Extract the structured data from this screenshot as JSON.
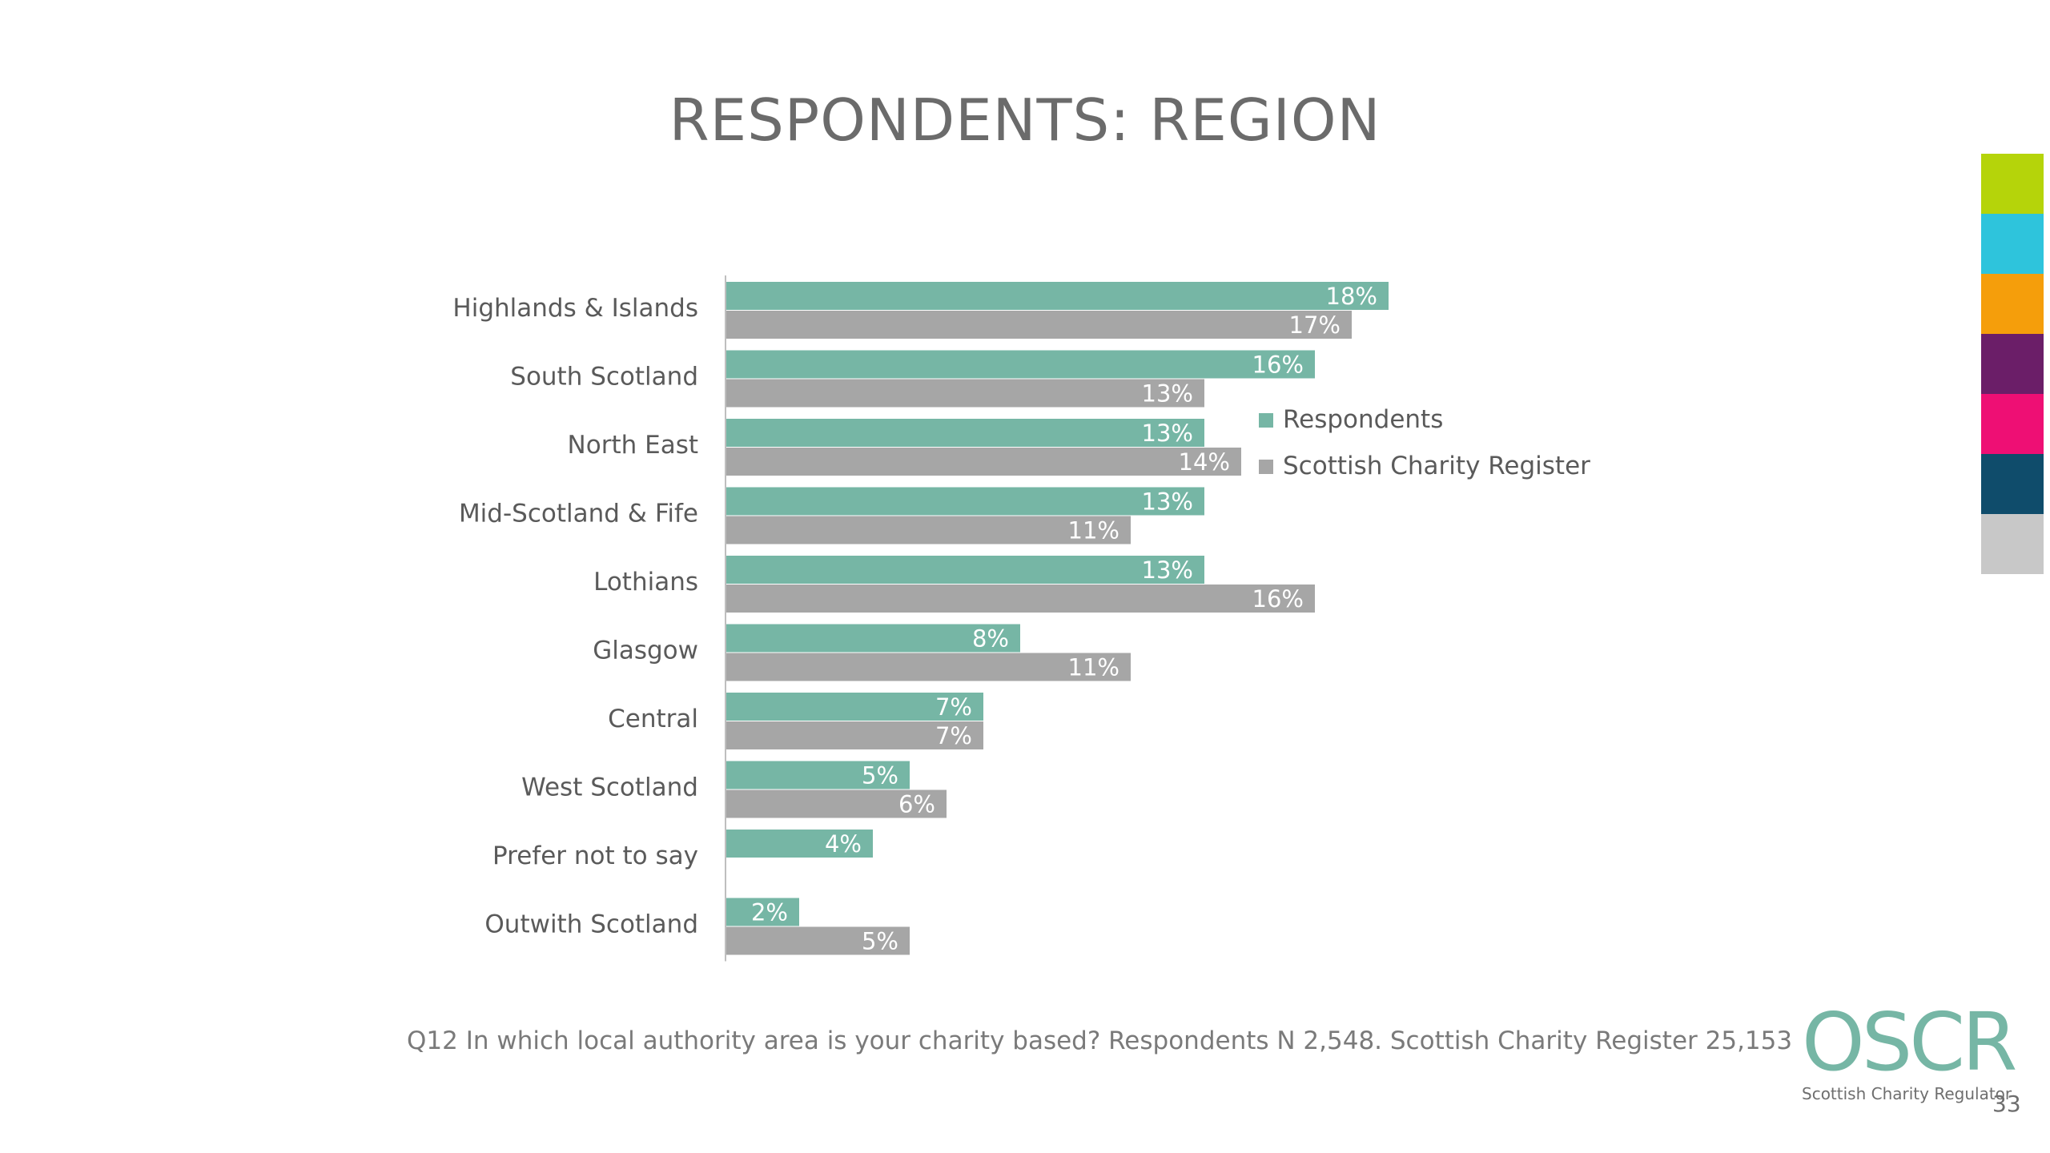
{
  "slide": {
    "title": "RESPONDENTS: REGION",
    "footnote": "Q12 In which local authority area is your charity based? Respondents N 2,548. Scottish Charity Register 25,153",
    "page_number": "33"
  },
  "logo": {
    "mark": "OSCR",
    "tagline": "Scottish Charity Regulator"
  },
  "side_strip": {
    "colors": [
      "#b5d40a",
      "#2ec4dc",
      "#f59e0b",
      "#6b1e68",
      "#ee0f74",
      "#0f4c6b",
      "#c8c8c8"
    ]
  },
  "chart_data": {
    "type": "bar",
    "orientation": "horizontal",
    "title": "",
    "xlabel": "",
    "ylabel": "",
    "xlim": [
      0,
      20
    ],
    "grid": false,
    "legend_position": "right",
    "categories": [
      "Highlands & Islands",
      "South Scotland",
      "North East",
      "Mid-Scotland & Fife",
      "Lothians",
      "Glasgow",
      "Central",
      "West Scotland",
      "Prefer not to say",
      "Outwith Scotland"
    ],
    "series": [
      {
        "name": "Respondents",
        "color": "#76b6a5",
        "values": [
          18,
          16,
          13,
          13,
          13,
          8,
          7,
          5,
          4,
          2
        ],
        "labels": [
          "18%",
          "16%",
          "13%",
          "13%",
          "13%",
          "8%",
          "7%",
          "5%",
          "4%",
          "2%"
        ]
      },
      {
        "name": "Scottish Charity Register",
        "color": "#a6a6a6",
        "values": [
          17,
          13,
          14,
          11,
          16,
          11,
          7,
          6,
          null,
          5
        ],
        "labels": [
          "17%",
          "13%",
          "14%",
          "11%",
          "16%",
          "11%",
          "7%",
          "6%",
          "",
          "5%"
        ]
      }
    ]
  }
}
